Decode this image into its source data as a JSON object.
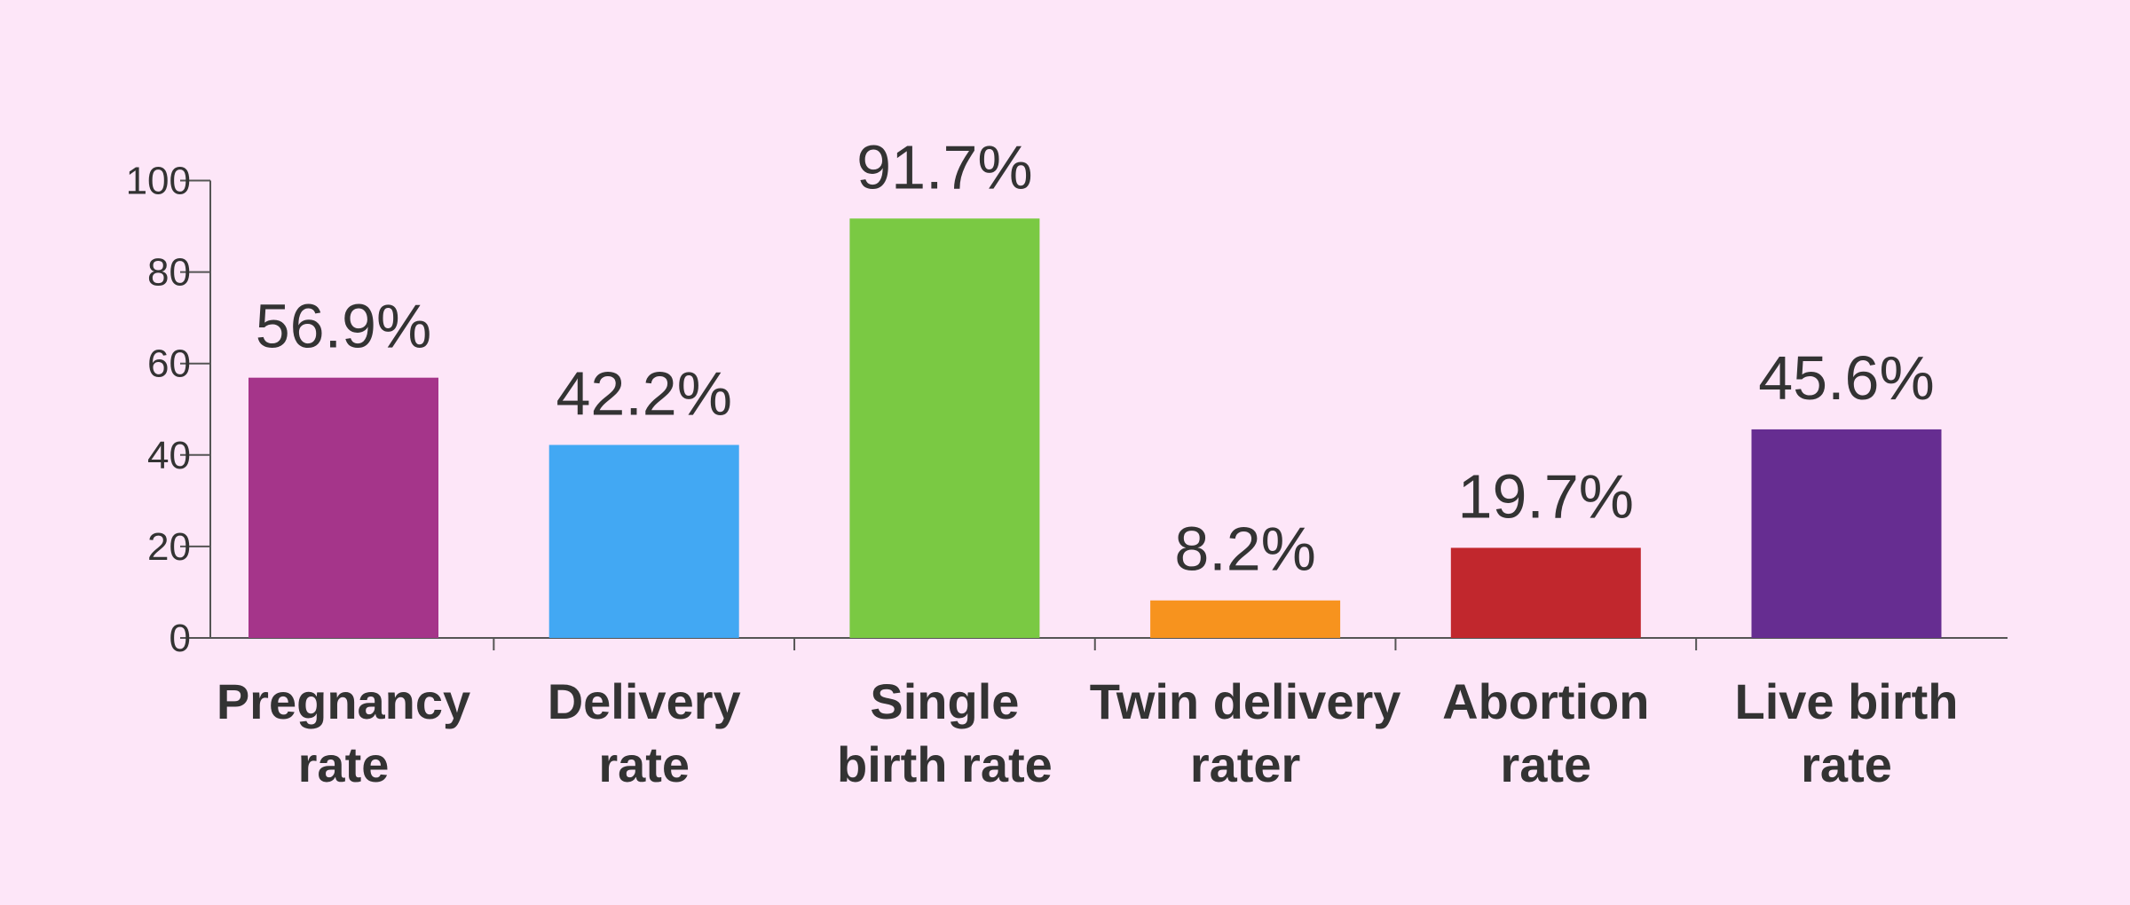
{
  "chart_data": {
    "type": "bar",
    "categories": [
      [
        "Pregnancy",
        "rate"
      ],
      [
        "Delivery",
        "rate"
      ],
      [
        "Single",
        "birth rate"
      ],
      [
        "Twin delivery",
        "rater"
      ],
      [
        "Abortion",
        "rate"
      ],
      [
        "Live birth",
        "rate"
      ]
    ],
    "values": [
      56.9,
      42.2,
      91.7,
      8.2,
      19.7,
      45.6
    ],
    "value_labels": [
      "56.9%",
      "42.2%",
      "91.7%",
      "8.2%",
      "19.7%",
      "45.6%"
    ],
    "colors": [
      "#a5358a",
      "#42a8f3",
      "#7ac943",
      "#f7931e",
      "#c1272d",
      "#662d91"
    ],
    "ylim": [
      0,
      100
    ],
    "yticks": [
      0,
      20,
      40,
      60,
      80,
      100
    ]
  }
}
